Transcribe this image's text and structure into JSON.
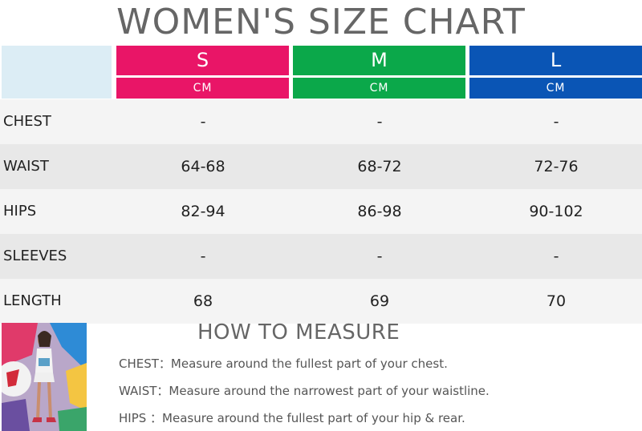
{
  "title": "WOMEN'S SIZE CHART",
  "colors": {
    "S": "#e91567",
    "M": "#0ba84a",
    "L": "#0a55b5",
    "corner": "#dcedf5"
  },
  "sizes": [
    {
      "label": "S",
      "unit": "CM"
    },
    {
      "label": "M",
      "unit": "CM"
    },
    {
      "label": "L",
      "unit": "CM"
    }
  ],
  "rows": [
    {
      "label": "CHEST",
      "values": [
        "-",
        "-",
        "-"
      ]
    },
    {
      "label": "WAIST",
      "values": [
        "64-68",
        "68-72",
        "72-76"
      ]
    },
    {
      "label": "HIPS",
      "values": [
        "82-94",
        "86-98",
        "90-102"
      ]
    },
    {
      "label": "SLEEVES",
      "values": [
        "-",
        "-",
        "-"
      ]
    },
    {
      "label": "LENGTH",
      "values": [
        "68",
        "69",
        "70"
      ]
    }
  ],
  "how_to_measure": {
    "title": "HOW TO MEASURE",
    "lines": [
      {
        "term": "CHEST：",
        "text": "Measure around the fullest part of your chest."
      },
      {
        "term": "WAIST：",
        "text": "Measure around the narrowest part of your waistline."
      },
      {
        "term": "HIPS ：",
        "text": "Measure around the fullest part of your hip & rear."
      }
    ]
  }
}
